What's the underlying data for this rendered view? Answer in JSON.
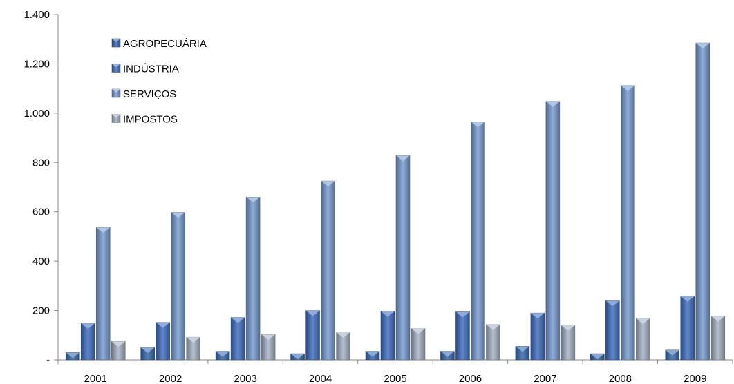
{
  "chart_data": {
    "type": "bar",
    "title": "",
    "xlabel": "",
    "ylabel": "",
    "categories": [
      "2001",
      "2002",
      "2003",
      "2004",
      "2005",
      "2006",
      "2007",
      "2008",
      "2009"
    ],
    "series": [
      {
        "name": "AGROPECUÁRIA",
        "values": [
          30,
          50,
          35,
          25,
          35,
          35,
          55,
          25,
          40
        ],
        "color": "#3a6bb0"
      },
      {
        "name": "INDÚSTRIA",
        "values": [
          148,
          152,
          172,
          200,
          197,
          195,
          190,
          240,
          258
        ],
        "color": "#4472c4"
      },
      {
        "name": "SERVIÇOS",
        "values": [
          537,
          598,
          660,
          725,
          828,
          965,
          1048,
          1112,
          1285
        ],
        "color": "#7b9fd4"
      },
      {
        "name": "IMPOSTOS",
        "values": [
          75,
          92,
          103,
          112,
          127,
          143,
          140,
          168,
          177
        ],
        "color": "#a8b4c8"
      }
    ],
    "ylim": [
      0,
      1400
    ],
    "yticks": [
      0,
      200,
      400,
      600,
      800,
      1000,
      1200,
      1400
    ],
    "ytick_labels": [
      "-",
      "200",
      "400",
      "600",
      "800",
      "1.000",
      "1.200",
      "1.400"
    ],
    "legend_position": "top-left",
    "grid": false
  }
}
